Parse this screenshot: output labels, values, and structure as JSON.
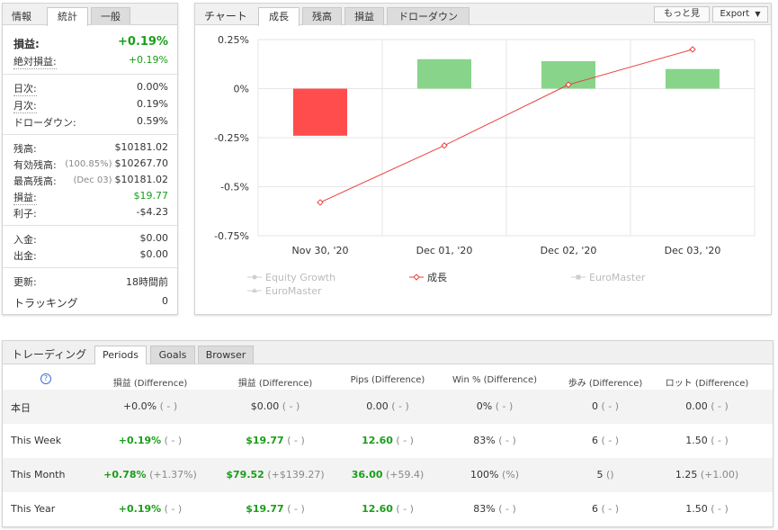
{
  "info": {
    "tabs": [
      "情報",
      "統計",
      "一般"
    ],
    "gain": {
      "label": "損益:",
      "value": "+0.19%"
    },
    "abs_gain": {
      "label": "絶対損益:",
      "value": "+0.19%"
    },
    "daily": {
      "label": "日次:",
      "value": "0.00%"
    },
    "monthly": {
      "label": "月次:",
      "value": "0.19%"
    },
    "drawdown": {
      "label": "ドローダウン:",
      "value": "0.59%"
    },
    "balance": {
      "label": "残高:",
      "value": "$10181.02"
    },
    "equity": {
      "label": "有効残高:",
      "sub": "(100.85%)",
      "value": "$10267.70"
    },
    "highest": {
      "label": "最高残高:",
      "sub": "(Dec 03)",
      "value": "$10181.02"
    },
    "profit": {
      "label": "損益:",
      "value": "$19.77"
    },
    "interest": {
      "label": "利子:",
      "value": "-$4.23"
    },
    "deposits": {
      "label": "入金:",
      "value": "$0.00"
    },
    "withdrawals": {
      "label": "出金:",
      "value": "$0.00"
    },
    "updated": {
      "label": "更新:",
      "value": "18時間前"
    },
    "tracking": {
      "label": "トラッキング",
      "value": "0"
    }
  },
  "chart_panel": {
    "title": "チャート",
    "tabs": [
      "成長",
      "残高",
      "損益",
      "ドローダウン"
    ],
    "more_button": "もっと見",
    "export_button": "Export",
    "legend": [
      "Equity Growth",
      "成長",
      "EuroMaster",
      "EuroMaster"
    ]
  },
  "chart_data": {
    "type": "bar",
    "categories": [
      "Nov 30, '20",
      "Dec 01, '20",
      "Dec 02, '20",
      "Dec 03, '20"
    ],
    "y_ticks": [
      "0.25%",
      "0%",
      "-0.25%",
      "-0.5%",
      "-0.75%"
    ],
    "ylim": [
      -0.75,
      0.25
    ],
    "series": [
      {
        "name": "EuroMaster",
        "type": "bar",
        "values": [
          -0.24,
          0.15,
          0.14,
          0.1
        ]
      },
      {
        "name": "成長",
        "type": "line",
        "values": [
          -0.58,
          -0.29,
          0.02,
          0.2
        ]
      }
    ],
    "colors": {
      "negative": "#ff4d4d",
      "positive": "#88d48a",
      "line": "#e8413c"
    },
    "grid": true
  },
  "trading": {
    "title": "トレーディング",
    "tabs": [
      "Periods",
      "Goals",
      "Browser"
    ],
    "help_icon": "?",
    "headers": [
      "損益 (Difference)",
      "損益 (Difference)",
      "Pips (Difference)",
      "Win % (Difference)",
      "歩み (Difference)",
      "ロット (Difference)"
    ],
    "rows": [
      {
        "label": "本日",
        "cells": [
          [
            "+0.0%",
            "( - )"
          ],
          [
            "$0.00",
            "( - )"
          ],
          [
            "0.00",
            "( - )"
          ],
          [
            "0%",
            "( - )"
          ],
          [
            "0",
            "( - )"
          ],
          [
            "0.00",
            "( - )"
          ]
        ]
      },
      {
        "label": "This Week",
        "cells": [
          [
            "+0.19%",
            "( - )"
          ],
          [
            "$19.77",
            "( - )"
          ],
          [
            "12.60",
            "( - )"
          ],
          [
            "83%",
            "( - )"
          ],
          [
            "6",
            "( - )"
          ],
          [
            "1.50",
            "( - )"
          ]
        ]
      },
      {
        "label": "This Month",
        "cells": [
          [
            "+0.78%",
            "(+1.37%)"
          ],
          [
            "$79.52",
            "(+$139.27)"
          ],
          [
            "36.00",
            "(+59.4)"
          ],
          [
            "100%",
            "(%)"
          ],
          [
            "5",
            "()"
          ],
          [
            "1.25",
            "(+1.00)"
          ]
        ]
      },
      {
        "label": "This Year",
        "cells": [
          [
            "+0.19%",
            "( - )"
          ],
          [
            "$19.77",
            "( - )"
          ],
          [
            "12.60",
            "( - )"
          ],
          [
            "83%",
            "( - )"
          ],
          [
            "6",
            "( - )"
          ],
          [
            "1.50",
            "( - )"
          ]
        ]
      }
    ]
  }
}
